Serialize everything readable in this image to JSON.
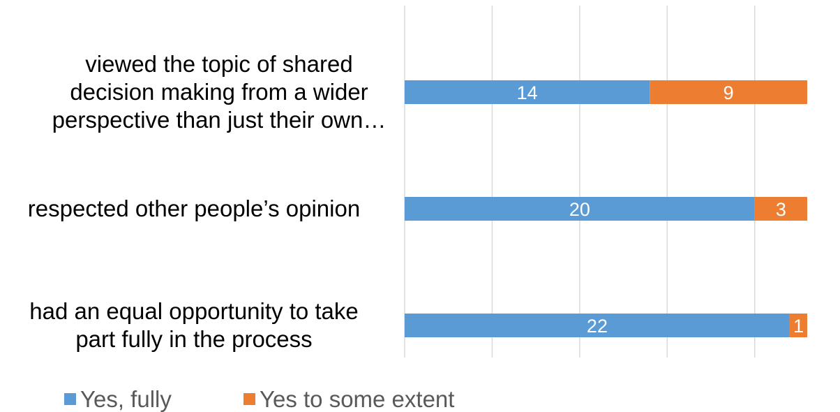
{
  "chart_data": {
    "type": "bar",
    "orientation": "horizontal",
    "stacked": true,
    "categories": [
      [
        "viewed the topic of shared",
        "decision making from a wider",
        "perspective than just their own…"
      ],
      [
        "respected other people’s opinion"
      ],
      [
        "had an equal opportunity to take",
        "part fully in the process"
      ]
    ],
    "series": [
      {
        "name": "Yes, fully",
        "color": "#5b9bd5",
        "values": [
          14,
          20,
          22
        ]
      },
      {
        "name": "Yes to some extent",
        "color": "#ed7d31",
        "values": [
          9,
          3,
          1
        ]
      }
    ],
    "xlim": [
      0,
      23
    ],
    "grid": true,
    "legend_position": "bottom-left",
    "data_labels": true
  }
}
